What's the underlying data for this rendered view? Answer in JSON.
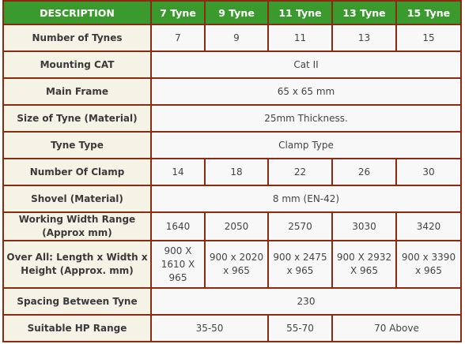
{
  "header": {
    "description": "DESCRIPTION",
    "col1": "7 Tyne",
    "col2": "9 Tyne",
    "col3": "11 Tyne",
    "col4": "13 Tyne",
    "col5": "15 Tyne"
  },
  "rows": {
    "tynes": {
      "label": "Number of Tynes",
      "v1": "7",
      "v2": "9",
      "v3": "11",
      "v4": "13",
      "v5": "15"
    },
    "mounting": {
      "label": "Mounting CAT",
      "value": "Cat II"
    },
    "main_frame": {
      "label": "Main Frame",
      "value": "65 x 65 mm"
    },
    "tyne_size": {
      "label": "Size of Tyne (Material)",
      "value": "25mm Thickness."
    },
    "tyne_type": {
      "label": "Tyne Type",
      "value": "Clamp Type"
    },
    "clamp": {
      "label": "Number Of Clamp",
      "v1": "14",
      "v2": "18",
      "v3": "22",
      "v4": "26",
      "v5": "30"
    },
    "shovel": {
      "label": "Shovel (Material)",
      "value": "8 mm (EN-42)"
    },
    "width": {
      "label": "Working Width Range (Approx mm)",
      "v1": "1640",
      "v2": "2050",
      "v3": "2570",
      "v4": "3030",
      "v5": "3420"
    },
    "overall": {
      "label": "Over All: Length x Width x Height  (Approx. mm)",
      "v1": "900 X 1610 X 965",
      "v2": "900 x 2020 x 965",
      "v3": "900 x 2475 x 965",
      "v4": "900 X 2932 X 965",
      "v5": "900 x 3390 x 965"
    },
    "spacing": {
      "label": "Spacing Between Tyne",
      "value": "230"
    },
    "hp": {
      "label": "Suitable HP Range",
      "range1": "35-50",
      "range2": "55-70",
      "range3": "70 Above"
    }
  },
  "colors": {
    "header_bg": "#3b9a2e",
    "border": "#8a2a10",
    "label_bg": "#f5f2e6"
  }
}
